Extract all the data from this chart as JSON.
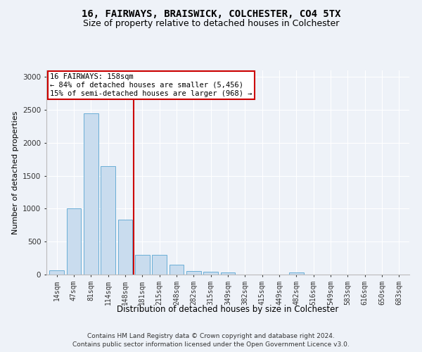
{
  "title_line1": "16, FAIRWAYS, BRAISWICK, COLCHESTER, CO4 5TX",
  "title_line2": "Size of property relative to detached houses in Colchester",
  "xlabel": "Distribution of detached houses by size in Colchester",
  "ylabel": "Number of detached properties",
  "bar_labels": [
    "14sqm",
    "47sqm",
    "81sqm",
    "114sqm",
    "148sqm",
    "181sqm",
    "215sqm",
    "248sqm",
    "282sqm",
    "315sqm",
    "349sqm",
    "382sqm",
    "415sqm",
    "449sqm",
    "482sqm",
    "516sqm",
    "549sqm",
    "583sqm",
    "616sqm",
    "650sqm",
    "683sqm"
  ],
  "bar_values": [
    60,
    1000,
    2450,
    1650,
    835,
    295,
    295,
    150,
    55,
    45,
    30,
    5,
    0,
    0,
    35,
    0,
    0,
    0,
    0,
    0,
    0
  ],
  "bar_color": "#c9dcee",
  "bar_edgecolor": "#6aaed6",
  "vline_x": 4.5,
  "vline_color": "#cc0000",
  "annotation_text": "16 FAIRWAYS: 158sqm\n← 84% of detached houses are smaller (5,456)\n15% of semi-detached houses are larger (968) →",
  "annotation_box_color": "#ffffff",
  "annotation_box_edge": "#cc0000",
  "ylim": [
    0,
    3100
  ],
  "yticks": [
    0,
    500,
    1000,
    1500,
    2000,
    2500,
    3000
  ],
  "footer_line1": "Contains HM Land Registry data © Crown copyright and database right 2024.",
  "footer_line2": "Contains public sector information licensed under the Open Government Licence v3.0.",
  "background_color": "#eef2f8",
  "grid_color": "#ffffff",
  "title_fontsize": 10,
  "subtitle_fontsize": 9,
  "axis_label_fontsize": 8,
  "tick_fontsize": 7,
  "annotation_fontsize": 7.5,
  "footer_fontsize": 6.5
}
